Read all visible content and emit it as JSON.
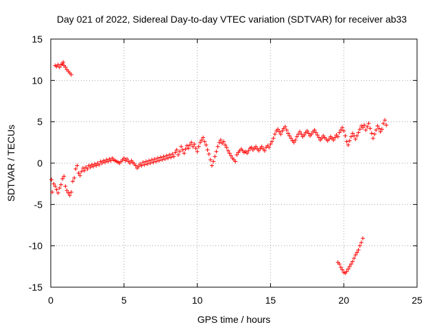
{
  "chart_data": {
    "type": "scatter",
    "title": "Day 021 of 2022, Sidereal Day-to-day VTEC variation (SDTVAR) for receiver ab33",
    "xlabel": "GPS time / hours",
    "ylabel": "SDTVAR / TECUs",
    "xlim": [
      0,
      25
    ],
    "ylim": [
      -15,
      15
    ],
    "xticks": [
      0,
      5,
      10,
      15,
      20,
      25
    ],
    "yticks": [
      -15,
      -10,
      -5,
      0,
      5,
      10,
      15
    ],
    "xtick_labels": [
      "0",
      "5",
      "10",
      "15",
      "20",
      "25"
    ],
    "ytick_labels": [
      "-15",
      "-10",
      "-5",
      "0",
      "5",
      "10",
      "15"
    ],
    "grid": true,
    "marker": "+",
    "colors": {
      "series": "#ff0000",
      "grid": "#a0a0a0",
      "axes": "#000000"
    },
    "series": [
      {
        "name": "main",
        "points": [
          [
            0.05,
            -2.0
          ],
          [
            0.1,
            -3.5
          ],
          [
            0.2,
            -2.5
          ],
          [
            0.3,
            -2.8
          ],
          [
            0.4,
            -3.2
          ],
          [
            0.5,
            -3.6
          ],
          [
            0.6,
            -3.0
          ],
          [
            0.7,
            -2.6
          ],
          [
            0.8,
            -1.9
          ],
          [
            0.9,
            -1.6
          ],
          [
            1.0,
            -2.8
          ],
          [
            1.1,
            -3.3
          ],
          [
            1.2,
            -3.6
          ],
          [
            1.3,
            -3.9
          ],
          [
            1.4,
            -3.5
          ],
          [
            1.5,
            -2.2
          ],
          [
            1.6,
            -1.8
          ],
          [
            1.7,
            -0.7
          ],
          [
            1.8,
            -0.3
          ],
          [
            1.9,
            -1.2
          ],
          [
            2.0,
            -1.5
          ],
          [
            2.1,
            -1.0
          ],
          [
            2.2,
            -0.6
          ],
          [
            2.3,
            -0.9
          ],
          [
            2.4,
            -0.5
          ],
          [
            2.5,
            -0.7
          ],
          [
            2.6,
            -0.3
          ],
          [
            2.7,
            -0.5
          ],
          [
            2.8,
            -0.2
          ],
          [
            2.9,
            -0.4
          ],
          [
            3.0,
            -0.1
          ],
          [
            3.1,
            -0.3
          ],
          [
            3.2,
            0.0
          ],
          [
            3.3,
            -0.2
          ],
          [
            3.4,
            0.2
          ],
          [
            3.5,
            0.0
          ],
          [
            3.6,
            0.3
          ],
          [
            3.7,
            0.1
          ],
          [
            3.8,
            0.4
          ],
          [
            3.9,
            0.2
          ],
          [
            4.0,
            0.5
          ],
          [
            4.1,
            0.3
          ],
          [
            4.2,
            0.6
          ],
          [
            4.3,
            0.4
          ],
          [
            4.4,
            0.3
          ],
          [
            4.5,
            0.2
          ],
          [
            4.6,
            0.1
          ],
          [
            4.7,
            0.0
          ],
          [
            4.8,
            0.2
          ],
          [
            4.9,
            0.4
          ],
          [
            5.0,
            0.6
          ],
          [
            5.1,
            0.3
          ],
          [
            5.2,
            0.5
          ],
          [
            5.3,
            0.2
          ],
          [
            5.4,
            0.0
          ],
          [
            5.5,
            0.3
          ],
          [
            5.6,
            0.1
          ],
          [
            5.7,
            -0.1
          ],
          [
            5.8,
            -0.3
          ],
          [
            5.9,
            -0.6
          ],
          [
            6.0,
            -0.4
          ],
          [
            6.1,
            -0.1
          ],
          [
            6.2,
            -0.3
          ],
          [
            6.3,
            0.1
          ],
          [
            6.4,
            -0.2
          ],
          [
            6.5,
            0.2
          ],
          [
            6.6,
            -0.1
          ],
          [
            6.7,
            0.3
          ],
          [
            6.8,
            0.0
          ],
          [
            6.9,
            0.4
          ],
          [
            7.0,
            0.1
          ],
          [
            7.1,
            0.5
          ],
          [
            7.2,
            0.2
          ],
          [
            7.3,
            0.6
          ],
          [
            7.4,
            0.3
          ],
          [
            7.5,
            0.7
          ],
          [
            7.6,
            0.4
          ],
          [
            7.7,
            0.8
          ],
          [
            7.8,
            0.5
          ],
          [
            7.9,
            0.9
          ],
          [
            8.0,
            0.6
          ],
          [
            8.1,
            1.0
          ],
          [
            8.2,
            0.7
          ],
          [
            8.3,
            1.1
          ],
          [
            8.4,
            0.8
          ],
          [
            8.5,
            1.3
          ],
          [
            8.6,
            1.6
          ],
          [
            8.7,
            1.0
          ],
          [
            8.8,
            1.4
          ],
          [
            8.9,
            2.0
          ],
          [
            9.0,
            1.6
          ],
          [
            9.1,
            1.2
          ],
          [
            9.2,
            1.7
          ],
          [
            9.3,
            2.1
          ],
          [
            9.4,
            1.8
          ],
          [
            9.5,
            2.2
          ],
          [
            9.6,
            2.5
          ],
          [
            9.7,
            2.0
          ],
          [
            9.8,
            2.3
          ],
          [
            9.9,
            1.8
          ],
          [
            10.0,
            1.4
          ],
          [
            10.1,
            2.0
          ],
          [
            10.2,
            2.5
          ],
          [
            10.3,
            2.8
          ],
          [
            10.4,
            3.1
          ],
          [
            10.5,
            2.6
          ],
          [
            10.6,
            2.2
          ],
          [
            10.7,
            1.6
          ],
          [
            10.8,
            1.1
          ],
          [
            10.9,
            0.4
          ],
          [
            11.0,
            -0.3
          ],
          [
            11.1,
            0.2
          ],
          [
            11.2,
            0.8
          ],
          [
            11.3,
            1.4
          ],
          [
            11.4,
            2.0
          ],
          [
            11.5,
            2.5
          ],
          [
            11.6,
            2.8
          ],
          [
            11.7,
            2.4
          ],
          [
            11.8,
            2.6
          ],
          [
            11.9,
            2.2
          ],
          [
            12.0,
            1.9
          ],
          [
            12.1,
            1.5
          ],
          [
            12.2,
            1.2
          ],
          [
            12.3,
            0.9
          ],
          [
            12.4,
            0.6
          ],
          [
            12.5,
            0.4
          ],
          [
            12.6,
            0.2
          ],
          [
            12.7,
            1.0
          ],
          [
            12.8,
            1.3
          ],
          [
            12.9,
            1.5
          ],
          [
            13.0,
            1.7
          ],
          [
            13.1,
            1.5
          ],
          [
            13.2,
            1.3
          ],
          [
            13.3,
            1.4
          ],
          [
            13.4,
            1.2
          ],
          [
            13.5,
            1.5
          ],
          [
            13.6,
            1.8
          ],
          [
            13.7,
            1.9
          ],
          [
            13.8,
            1.6
          ],
          [
            13.9,
            1.8
          ],
          [
            14.0,
            2.0
          ],
          [
            14.1,
            1.7
          ],
          [
            14.2,
            1.5
          ],
          [
            14.3,
            1.8
          ],
          [
            14.4,
            2.0
          ],
          [
            14.5,
            1.7
          ],
          [
            14.6,
            1.5
          ],
          [
            14.7,
            1.9
          ],
          [
            14.8,
            2.1
          ],
          [
            14.9,
            1.9
          ],
          [
            15.0,
            2.3
          ],
          [
            15.1,
            2.6
          ],
          [
            15.2,
            3.0
          ],
          [
            15.3,
            3.5
          ],
          [
            15.4,
            3.9
          ],
          [
            15.5,
            4.1
          ],
          [
            15.6,
            3.8
          ],
          [
            15.7,
            3.5
          ],
          [
            15.8,
            3.9
          ],
          [
            15.9,
            4.2
          ],
          [
            16.0,
            4.4
          ],
          [
            16.1,
            4.0
          ],
          [
            16.2,
            3.6
          ],
          [
            16.3,
            3.3
          ],
          [
            16.4,
            3.0
          ],
          [
            16.5,
            2.7
          ],
          [
            16.6,
            2.5
          ],
          [
            16.7,
            2.8
          ],
          [
            16.8,
            3.2
          ],
          [
            16.9,
            3.5
          ],
          [
            17.0,
            3.8
          ],
          [
            17.1,
            3.5
          ],
          [
            17.2,
            3.2
          ],
          [
            17.3,
            3.4
          ],
          [
            17.4,
            3.7
          ],
          [
            17.5,
            3.9
          ],
          [
            17.6,
            3.6
          ],
          [
            17.7,
            3.3
          ],
          [
            17.8,
            3.5
          ],
          [
            17.9,
            3.8
          ],
          [
            18.0,
            4.0
          ],
          [
            18.1,
            3.7
          ],
          [
            18.2,
            3.4
          ],
          [
            18.3,
            3.1
          ],
          [
            18.4,
            2.8
          ],
          [
            18.5,
            3.0
          ],
          [
            18.6,
            3.3
          ],
          [
            18.7,
            3.1
          ],
          [
            18.8,
            2.9
          ],
          [
            18.9,
            2.7
          ],
          [
            19.0,
            2.9
          ],
          [
            19.1,
            3.2
          ],
          [
            19.2,
            3.0
          ],
          [
            19.3,
            2.8
          ],
          [
            19.4,
            3.1
          ],
          [
            19.5,
            3.4
          ],
          [
            19.6,
            3.2
          ],
          [
            19.7,
            3.7
          ],
          [
            19.8,
            4.0
          ],
          [
            19.9,
            4.3
          ],
          [
            20.0,
            3.9
          ],
          [
            20.1,
            3.3
          ],
          [
            20.2,
            2.6
          ],
          [
            20.3,
            2.2
          ],
          [
            20.4,
            2.7
          ],
          [
            20.5,
            3.2
          ],
          [
            20.6,
            3.6
          ],
          [
            20.7,
            3.3
          ],
          [
            20.8,
            2.9
          ],
          [
            20.9,
            3.3
          ],
          [
            21.0,
            3.7
          ],
          [
            21.1,
            4.1
          ],
          [
            21.2,
            4.5
          ],
          [
            21.3,
            4.3
          ],
          [
            21.4,
            4.6
          ],
          [
            21.5,
            4.0
          ],
          [
            21.6,
            4.4
          ],
          [
            21.7,
            4.8
          ],
          [
            21.8,
            4.2
          ],
          [
            21.9,
            3.6
          ],
          [
            22.0,
            3.0
          ],
          [
            22.1,
            3.5
          ],
          [
            22.2,
            4.0
          ],
          [
            22.3,
            4.5
          ],
          [
            22.4,
            4.2
          ],
          [
            22.5,
            3.8
          ],
          [
            22.6,
            4.1
          ],
          [
            22.7,
            4.8
          ],
          [
            22.8,
            5.2
          ],
          [
            22.9,
            4.6
          ]
        ]
      },
      {
        "name": "upper-left",
        "points": [
          [
            0.3,
            11.8
          ],
          [
            0.4,
            11.7
          ],
          [
            0.5,
            11.9
          ],
          [
            0.6,
            11.6
          ],
          [
            0.7,
            11.9
          ],
          [
            0.8,
            12.0
          ],
          [
            0.85,
            12.2
          ],
          [
            0.9,
            11.8
          ],
          [
            1.0,
            11.6
          ],
          [
            1.1,
            11.3
          ],
          [
            1.2,
            11.1
          ],
          [
            1.3,
            10.9
          ],
          [
            1.4,
            10.7
          ]
        ]
      },
      {
        "name": "lower-right",
        "points": [
          [
            19.6,
            -12.0
          ],
          [
            19.7,
            -12.2
          ],
          [
            19.8,
            -12.6
          ],
          [
            19.9,
            -12.9
          ],
          [
            20.0,
            -13.2
          ],
          [
            20.1,
            -13.3
          ],
          [
            20.2,
            -13.1
          ],
          [
            20.3,
            -12.8
          ],
          [
            20.4,
            -12.5
          ],
          [
            20.5,
            -12.2
          ],
          [
            20.6,
            -11.9
          ],
          [
            20.7,
            -11.5
          ],
          [
            20.8,
            -11.1
          ],
          [
            20.9,
            -10.8
          ],
          [
            21.0,
            -10.5
          ],
          [
            21.1,
            -10.0
          ],
          [
            21.2,
            -9.6
          ],
          [
            21.3,
            -9.1
          ]
        ]
      }
    ]
  }
}
